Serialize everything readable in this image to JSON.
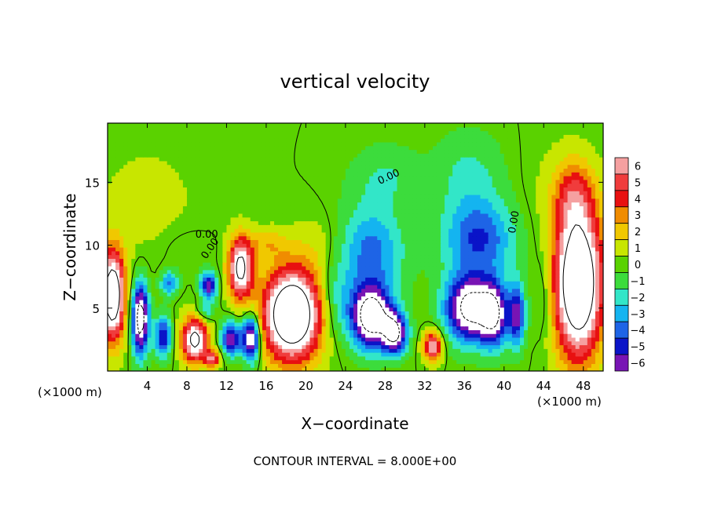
{
  "chart_data": {
    "type": "heatmap",
    "title": "vertical velocity",
    "xlabel": "X−coordinate",
    "ylabel": "Z−coordinate",
    "x_unit_left": "(×1000 m)",
    "x_unit_right": "(×1000 m)",
    "footer": "CONTOUR INTERVAL = 8.000E+00",
    "xlim": [
      0,
      50
    ],
    "ylim": [
      0,
      19.7
    ],
    "x_ticks": [
      "4",
      "8",
      "12",
      "16",
      "20",
      "24",
      "28",
      "32",
      "36",
      "40",
      "44",
      "48"
    ],
    "x_tick_values": [
      4,
      8,
      12,
      16,
      20,
      24,
      28,
      32,
      36,
      40,
      44,
      48
    ],
    "y_ticks": [
      "5",
      "10",
      "15"
    ],
    "y_tick_values": [
      5,
      10,
      15
    ],
    "colorbar": {
      "labels": [
        "6",
        "5",
        "4",
        "3",
        "2",
        "1",
        "0",
        "−1",
        "−2",
        "−3",
        "−4",
        "−5",
        "−6"
      ],
      "colors": [
        "#f5a0a0",
        "#f03c3c",
        "#e81010",
        "#f08c00",
        "#f0c800",
        "#c8e600",
        "#5ad200",
        "#3cdc3c",
        "#32e6c8",
        "#14b4f0",
        "#1e64e6",
        "#0a14c8",
        "#7814b4"
      ]
    },
    "contour_labels": [
      "0.00",
      "0.00",
      "0.00",
      "0.00"
    ],
    "features": [
      {
        "x": 0.5,
        "z": 6.0,
        "rx": 1.2,
        "rz": 3.5,
        "w": 11
      },
      {
        "x": 3.3,
        "z": 4.2,
        "rx": 0.8,
        "rz": 2.8,
        "w": -10
      },
      {
        "x": 5.6,
        "z": 2.8,
        "rx": 0.8,
        "rz": 1.6,
        "w": -6
      },
      {
        "x": 6.2,
        "z": 7.0,
        "rx": 0.9,
        "rz": 1.0,
        "w": -4
      },
      {
        "x": 8.8,
        "z": 2.5,
        "rx": 1.3,
        "rz": 1.8,
        "w": 9
      },
      {
        "x": 10.6,
        "z": 1.0,
        "rx": 0.7,
        "rz": 0.7,
        "w": 6
      },
      {
        "x": 10.2,
        "z": 6.8,
        "rx": 0.8,
        "rz": 1.0,
        "w": -7
      },
      {
        "x": 9.8,
        "z": 4.8,
        "rx": 0.9,
        "rz": 0.8,
        "w": -3
      },
      {
        "x": 12.5,
        "z": 2.6,
        "rx": 1.0,
        "rz": 1.3,
        "w": -7
      },
      {
        "x": 14.5,
        "z": 2.6,
        "rx": 0.8,
        "rz": 1.8,
        "w": -9
      },
      {
        "x": 13.4,
        "z": 8.2,
        "rx": 1.2,
        "rz": 2.4,
        "w": 9
      },
      {
        "x": 16.0,
        "z": 10.2,
        "rx": 2.0,
        "rz": 1.2,
        "w": 2
      },
      {
        "x": 18.6,
        "z": 4.5,
        "rx": 2.9,
        "rz": 3.6,
        "w": 12
      },
      {
        "x": 21.5,
        "z": 10.0,
        "rx": 3.0,
        "rz": 2.5,
        "w": 1
      },
      {
        "x": 26.5,
        "z": 9.5,
        "rx": 3.3,
        "rz": 3.6,
        "w": -4
      },
      {
        "x": 26.6,
        "z": 4.3,
        "rx": 2.0,
        "rz": 2.4,
        "w": -10
      },
      {
        "x": 29.0,
        "z": 3.0,
        "rx": 1.2,
        "rz": 1.6,
        "w": -8
      },
      {
        "x": 23.0,
        "z": 5.5,
        "rx": 1.6,
        "rz": 3.0,
        "w": -2
      },
      {
        "x": 28.0,
        "z": 15.5,
        "rx": 3.5,
        "rz": 2.5,
        "w": -1.5
      },
      {
        "x": 32.8,
        "z": 2.0,
        "rx": 0.9,
        "rz": 1.2,
        "w": 7
      },
      {
        "x": 37.5,
        "z": 10.5,
        "rx": 3.6,
        "rz": 3.0,
        "w": -4.5
      },
      {
        "x": 36.5,
        "z": 5.0,
        "rx": 2.4,
        "rz": 2.6,
        "w": -9
      },
      {
        "x": 39.0,
        "z": 4.5,
        "rx": 1.4,
        "rz": 2.5,
        "w": -7
      },
      {
        "x": 41.3,
        "z": 4.5,
        "rx": 0.8,
        "rz": 2.5,
        "w": -6
      },
      {
        "x": 36.5,
        "z": 15.5,
        "rx": 3.5,
        "rz": 3.5,
        "w": -1.8
      },
      {
        "x": 47.5,
        "z": 7.0,
        "rx": 2.4,
        "rz": 5.8,
        "w": 12
      },
      {
        "x": 47.0,
        "z": 14.0,
        "rx": 2.0,
        "rz": 2.8,
        "w": 3
      },
      {
        "x": 44.0,
        "z": 6.0,
        "rx": 1.0,
        "rz": 3.5,
        "w": -1.5
      },
      {
        "x": 4.0,
        "z": 13.0,
        "rx": 6.0,
        "rz": 6.0,
        "w": 0.8
      },
      {
        "x": 45.0,
        "z": 14.0,
        "rx": 4.0,
        "rz": 5.0,
        "w": 0.5
      },
      {
        "x": 8.0,
        "z": 9.5,
        "rx": 3.0,
        "rz": 2.0,
        "w": -0.8
      }
    ]
  }
}
